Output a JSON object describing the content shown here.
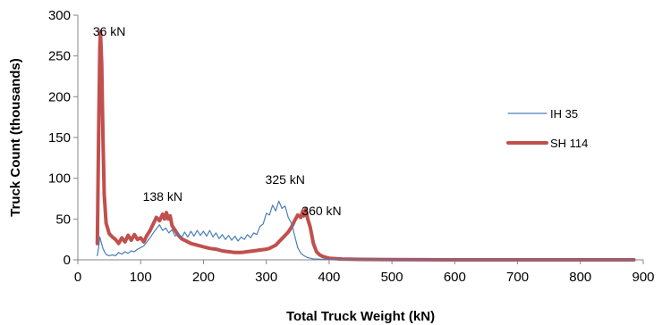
{
  "chart_data": {
    "type": "line",
    "title": "",
    "xlabel": "Total Truck Weight (kN)",
    "ylabel": "Truck Count (thousands)",
    "xlim": [
      0,
      900
    ],
    "ylim": [
      0,
      300
    ],
    "xticks": [
      0,
      100,
      200,
      300,
      400,
      500,
      600,
      700,
      800,
      900
    ],
    "yticks": [
      0,
      50,
      100,
      150,
      200,
      250,
      300
    ],
    "grid": false,
    "legend": "right",
    "series": [
      {
        "name": "IH 35",
        "color": "#4a7ebb",
        "x": [
          31,
          33,
          35,
          37,
          40,
          43,
          46,
          50,
          55,
          60,
          65,
          70,
          75,
          80,
          85,
          90,
          95,
          100,
          105,
          110,
          115,
          120,
          125,
          130,
          135,
          140,
          145,
          150,
          155,
          160,
          165,
          170,
          175,
          180,
          185,
          190,
          195,
          200,
          205,
          210,
          215,
          220,
          225,
          230,
          235,
          240,
          245,
          250,
          255,
          260,
          265,
          270,
          275,
          280,
          285,
          290,
          295,
          300,
          305,
          310,
          315,
          320,
          325,
          330,
          335,
          340,
          345,
          350,
          355,
          360,
          365,
          370,
          375,
          380,
          390,
          400,
          500,
          600,
          700,
          800,
          885
        ],
        "y": [
          5,
          15,
          28,
          22,
          14,
          9,
          6,
          5,
          6,
          5,
          9,
          7,
          10,
          8,
          11,
          10,
          13,
          15,
          17,
          22,
          27,
          33,
          38,
          43,
          36,
          39,
          33,
          37,
          29,
          33,
          27,
          34,
          28,
          35,
          29,
          36,
          30,
          35,
          29,
          36,
          28,
          33,
          26,
          31,
          25,
          30,
          24,
          29,
          23,
          28,
          25,
          31,
          27,
          33,
          31,
          41,
          44,
          57,
          55,
          67,
          60,
          72,
          63,
          66,
          52,
          45,
          30,
          15,
          8,
          5,
          3,
          2,
          1,
          1,
          0.5,
          0.3,
          0,
          0,
          0,
          0,
          0
        ]
      },
      {
        "name": "SH 114",
        "color": "#c0504d",
        "x": [
          31,
          33,
          35,
          36,
          38,
          40,
          42,
          45,
          50,
          55,
          60,
          65,
          70,
          75,
          80,
          85,
          90,
          95,
          100,
          105,
          110,
          115,
          120,
          125,
          130,
          135,
          138,
          141,
          144,
          147,
          150,
          155,
          160,
          165,
          170,
          180,
          190,
          200,
          210,
          220,
          230,
          240,
          250,
          260,
          270,
          280,
          290,
          300,
          305,
          310,
          315,
          320,
          325,
          330,
          335,
          340,
          345,
          350,
          355,
          358,
          360,
          363,
          366,
          370,
          375,
          380,
          385,
          390,
          395,
          400,
          420,
          450,
          500,
          600,
          700,
          800,
          885
        ],
        "y": [
          20,
          150,
          260,
          280,
          240,
          150,
          80,
          45,
          32,
          28,
          25,
          20,
          27,
          22,
          30,
          24,
          31,
          25,
          27,
          22,
          30,
          36,
          44,
          52,
          48,
          56,
          50,
          58,
          50,
          54,
          42,
          36,
          30,
          26,
          24,
          20,
          18,
          16,
          14,
          13,
          11,
          10,
          9,
          9,
          10,
          11,
          12,
          13,
          14,
          16,
          18,
          22,
          26,
          30,
          34,
          40,
          48,
          55,
          52,
          60,
          54,
          62,
          50,
          40,
          20,
          10,
          6,
          4,
          3,
          2,
          1,
          0.5,
          0.2,
          0,
          0,
          0,
          0
        ]
      }
    ],
    "annotations": [
      {
        "text": "36 kN",
        "x": 50,
        "y": 275
      },
      {
        "text": "138 kN",
        "x": 135,
        "y": 72
      },
      {
        "text": "325 kN",
        "x": 330,
        "y": 93
      },
      {
        "text": "360 kN",
        "x": 388,
        "y": 55
      }
    ]
  }
}
